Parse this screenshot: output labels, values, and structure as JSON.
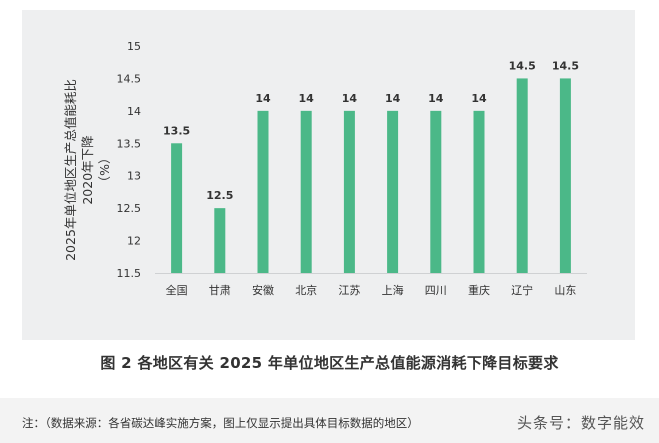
{
  "chart_data": {
    "type": "bar",
    "categories": [
      "全国",
      "甘肃",
      "安徽",
      "北京",
      "江苏",
      "上海",
      "四川",
      "重庆",
      "辽宁",
      "山东"
    ],
    "values": [
      13.5,
      12.5,
      14,
      14,
      14,
      14,
      14,
      14,
      14.5,
      14.5
    ],
    "value_labels": [
      "13.5",
      "12.5",
      "14",
      "14",
      "14",
      "14",
      "14",
      "14",
      "14.5",
      "14.5"
    ],
    "ylabel_lines": [
      "2025年单位地区生产总值能耗比",
      "2020年下降",
      "（%）"
    ],
    "yticks": [
      "11.5",
      "12",
      "12.5",
      "13",
      "13.5",
      "14",
      "14.5",
      "15"
    ],
    "ylim": [
      11.5,
      15
    ],
    "grid": false,
    "bar_color": "#4bb888"
  },
  "caption": "图 2  各地区有关 2025 年单位地区生产总值能源消耗下降目标要求",
  "note": "注：（数据来源：各省碳达峰实施方案，图上仅显示提出具体目标数据的地区）",
  "watermark": "头条号：数字能效"
}
